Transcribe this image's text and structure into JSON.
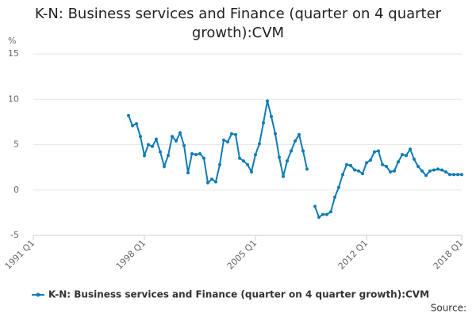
{
  "chart_data": {
    "type": "line",
    "title": "K-N: Business services and Finance (quarter on 4 quarter growth):CVM",
    "y_label": "%",
    "source": "Source:",
    "categories": [
      "1991 Q1",
      null,
      null,
      null,
      null,
      null,
      null,
      null,
      null,
      null,
      null,
      null,
      null,
      null,
      null,
      null,
      null,
      null,
      null,
      null,
      null,
      null,
      null,
      null,
      null,
      null,
      null,
      null,
      "1998 Q1",
      null,
      null,
      null,
      null,
      null,
      null,
      null,
      null,
      null,
      null,
      null,
      null,
      null,
      null,
      null,
      null,
      null,
      null,
      null,
      null,
      null,
      null,
      null,
      null,
      null,
      null,
      null,
      "2005 Q1",
      null,
      null,
      null,
      null,
      null,
      null,
      null,
      null,
      null,
      null,
      null,
      null,
      null,
      null,
      null,
      null,
      null,
      null,
      null,
      null,
      null,
      null,
      null,
      null,
      null,
      null,
      null,
      "2012 Q1",
      null,
      null,
      null,
      null,
      null,
      null,
      null,
      null,
      null,
      null,
      null,
      null,
      null,
      null,
      null,
      null,
      null,
      null,
      null,
      null,
      null,
      null,
      null,
      "2018 Q1"
    ],
    "series": [
      {
        "name": "K-N: Business services and Finance (quarter on 4 quarter growth):CVM",
        "color": "#0f7bb5",
        "values": [
          null,
          null,
          null,
          null,
          null,
          null,
          null,
          null,
          null,
          null,
          null,
          null,
          null,
          null,
          null,
          null,
          null,
          null,
          null,
          null,
          null,
          null,
          null,
          null,
          8.2,
          7.1,
          7.3,
          5.9,
          3.8,
          5.0,
          4.8,
          5.6,
          4.2,
          2.6,
          3.8,
          5.9,
          5.4,
          6.3,
          4.9,
          1.9,
          4.0,
          3.9,
          4.0,
          3.5,
          0.8,
          1.2,
          0.9,
          2.8,
          5.5,
          5.3,
          6.2,
          6.1,
          3.5,
          3.2,
          2.8,
          2.0,
          3.9,
          5.1,
          7.4,
          9.8,
          8.1,
          6.2,
          3.6,
          1.5,
          3.2,
          4.3,
          5.4,
          6.1,
          4.3,
          2.3,
          null,
          -1.8,
          -3.0,
          -2.7,
          -2.7,
          -2.4,
          -0.8,
          0.3,
          1.7,
          2.8,
          2.7,
          2.2,
          2.1,
          1.8,
          3.0,
          3.3,
          4.2,
          4.3,
          2.8,
          2.6,
          2.0,
          2.1,
          3.1,
          3.9,
          3.8,
          4.5,
          3.4,
          2.6,
          2.1,
          1.6,
          2.1,
          2.2,
          2.3,
          2.2,
          2.0,
          1.7,
          1.7,
          1.7,
          1.7
        ]
      }
    ],
    "ylim": [
      -5,
      15
    ],
    "yticks": [
      -5,
      0,
      5,
      10,
      15
    ],
    "grid": true,
    "legend": "bottom"
  }
}
